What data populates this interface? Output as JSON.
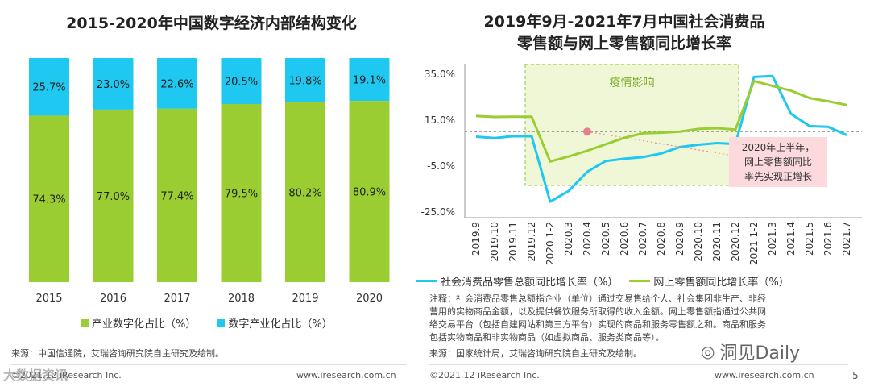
{
  "page": {
    "number": "5"
  },
  "left": {
    "title": "2015-2020年中国数字经济内部结构变化",
    "source": "来源：中国信通院，艾瑞咨询研究院自主研究及绘制。",
    "copyright": "©2021.12 iResearch Inc.",
    "website": "www.iresearch.com.cn"
  },
  "right": {
    "title_line1": "2019年9月-2021年7月中国社会消费品",
    "title_line2": "零售额与网上零售额同比增长率",
    "shade_label": "疫情影响",
    "callout": [
      "2020年上半年，",
      "网上零售额同比",
      "率先实现正增长"
    ],
    "note": [
      "注释：社会消费品零售总额指企业（单位）通过交易售给个人、社会集团非生产、非经",
      "营用的实物商品金额，以及提供餐饮服务所取得的收入金额。网上零售额指通过公共网",
      "络交易平台（包括自建网站和第三方平台）实现的商品和服务零售额之和。商品和服务",
      "包括实物商品和非实物商品（如虚拟商品、服务类商品等）。"
    ],
    "source": "来源：国家统计局，艾瑞咨询研究院自主研究及绘制。",
    "copyright": "©2021.12 iResearch Inc.",
    "website": "www.iresearch.com.cn"
  },
  "watermark": {
    "left": "大数据资讯",
    "right": "洞见Daily"
  },
  "colors": {
    "green": "#9ACD32",
    "cyan": "#1EC8F0",
    "pink": "#E8808A",
    "shade": "#F0F7D6",
    "shade_border": "#8CC63F"
  },
  "chart_data": [
    {
      "type": "bar",
      "stacked": true,
      "title": "2015-2020年中国数字经济内部结构变化",
      "categories": [
        "2015",
        "2016",
        "2017",
        "2018",
        "2019",
        "2020"
      ],
      "series": [
        {
          "name": "产业数字化占比（%）",
          "values": [
            74.3,
            77.0,
            77.4,
            79.5,
            80.2,
            80.9
          ],
          "labels": [
            "74.3%",
            "77.0%",
            "77.4%",
            "79.5%",
            "80.2%",
            "80.9%"
          ]
        },
        {
          "name": "数字产业化占比（%）",
          "values": [
            25.7,
            23.0,
            22.6,
            20.5,
            19.8,
            19.1
          ],
          "labels": [
            "25.7%",
            "23.0%",
            "22.6%",
            "20.5%",
            "19.8%",
            "19.1%"
          ]
        }
      ],
      "ylim": [
        0,
        100
      ],
      "legend": "bottom"
    },
    {
      "type": "line",
      "title": "2019年9月-2021年7月中国社会消费品零售额与网上零售额同比增长率",
      "categories": [
        "2019.9",
        "2019.10",
        "2019.11",
        "2019.12",
        "2020.1-2",
        "2020.3",
        "2020.4",
        "2020.5",
        "2020.6",
        "2020.7",
        "2020.8",
        "2020.9",
        "2020.10",
        "2020.11",
        "2020.12",
        "2021.1-2",
        "2021.3",
        "2021.4",
        "2021.5",
        "2021.6",
        "2021.7"
      ],
      "series": [
        {
          "name": "社会消费品零售总额同比增长率（%）",
          "values": [
            7.8,
            7.2,
            8.0,
            8.0,
            -20.5,
            -15.8,
            -7.5,
            -2.8,
            -1.8,
            -1.1,
            0.5,
            3.3,
            4.3,
            5.0,
            4.6,
            33.8,
            34.2,
            17.7,
            12.4,
            12.1,
            8.5
          ]
        },
        {
          "name": "网上零售额同比增长率（%）",
          "values": [
            16.8,
            16.4,
            16.5,
            16.5,
            -3.0,
            -0.8,
            1.7,
            4.5,
            7.3,
            9.3,
            9.5,
            10.0,
            11.2,
            11.5,
            10.9,
            32.0,
            29.9,
            27.8,
            24.6,
            23.2,
            21.6
          ]
        }
      ],
      "yticks": [
        "35.0%",
        "15.0%",
        "-5.0%",
        "-25.0%"
      ],
      "ylim": [
        -25,
        35
      ],
      "reference_line": 10.0,
      "highlight_point": {
        "category": "2020.4",
        "value": 10.0
      },
      "shaded_region": [
        "2019.12",
        "2020.12"
      ],
      "legend": "bottom"
    }
  ]
}
